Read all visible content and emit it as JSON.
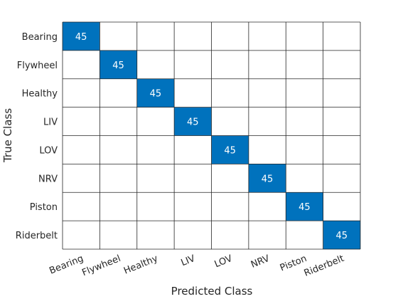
{
  "chart_data": {
    "type": "heatmap",
    "title": "",
    "xlabel": "Predicted Class",
    "ylabel": "True Class",
    "classes": [
      "Bearing",
      "Flywheel",
      "Healthy",
      "LIV",
      "LOV",
      "NRV",
      "Piston",
      "Riderbelt"
    ],
    "matrix": [
      [
        45,
        0,
        0,
        0,
        0,
        0,
        0,
        0
      ],
      [
        0,
        45,
        0,
        0,
        0,
        0,
        0,
        0
      ],
      [
        0,
        0,
        45,
        0,
        0,
        0,
        0,
        0
      ],
      [
        0,
        0,
        0,
        45,
        0,
        0,
        0,
        0
      ],
      [
        0,
        0,
        0,
        0,
        45,
        0,
        0,
        0
      ],
      [
        0,
        0,
        0,
        0,
        0,
        45,
        0,
        0
      ],
      [
        0,
        0,
        0,
        0,
        0,
        0,
        45,
        0
      ],
      [
        0,
        0,
        0,
        0,
        0,
        0,
        0,
        45
      ]
    ],
    "zero_cells_shown_blank": true,
    "grid": true,
    "colors": {
      "filled": "#0072bd",
      "empty": "#ffffff",
      "grid_line": "#262626",
      "filled_text": "#ffffff"
    }
  }
}
